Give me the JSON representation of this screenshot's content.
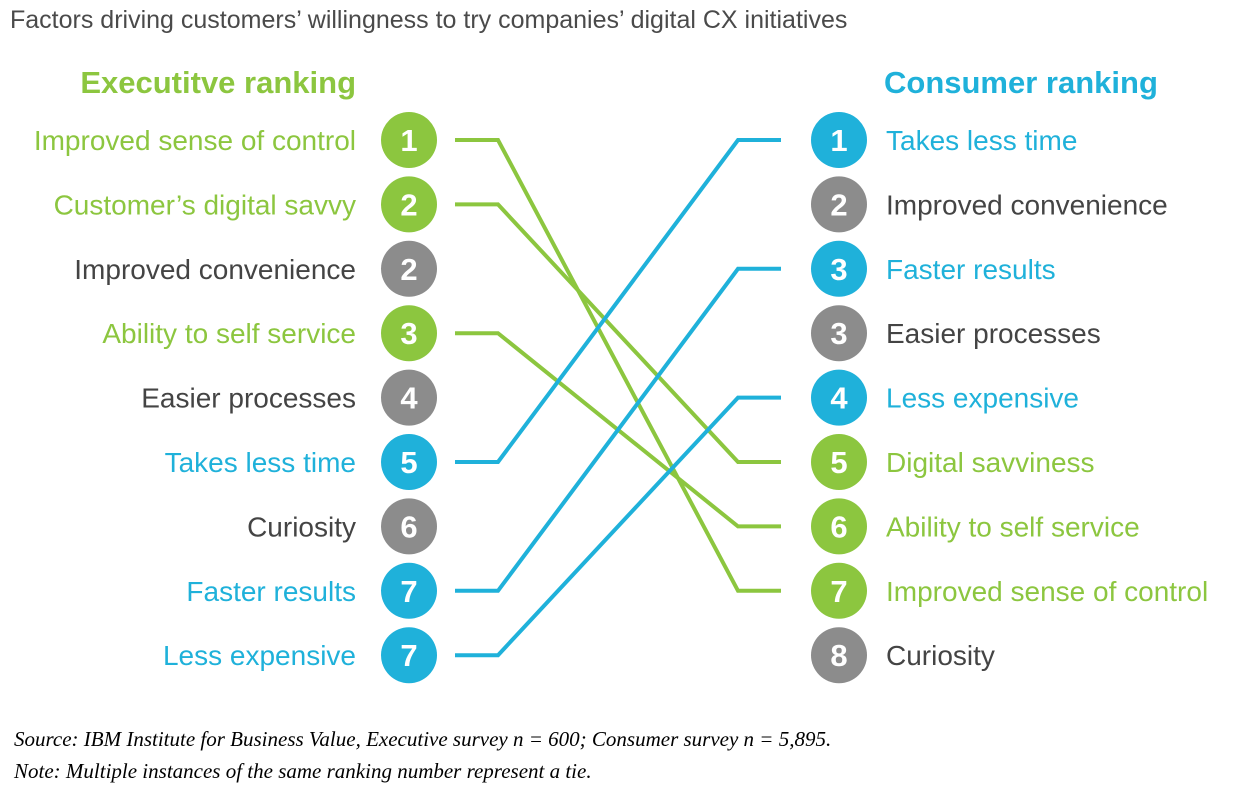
{
  "title": "Factors driving customers’ willingness to try companies’ digital CX initiatives",
  "colors": {
    "green": "#8cc63f",
    "blue": "#1fb1da",
    "gray": "#8c8c8c",
    "green_line": "#8cc63f",
    "blue_line": "#1fb1da",
    "dark_text": "#444444"
  },
  "chart_data": {
    "type": "slope-ranking",
    "left": {
      "heading": "Executitve ranking",
      "items": [
        {
          "label": "Improved sense of control",
          "rank": "1",
          "color": "green"
        },
        {
          "label": "Customer’s digital savvy",
          "rank": "2",
          "color": "green"
        },
        {
          "label": "Improved convenience",
          "rank": "2",
          "color": "gray"
        },
        {
          "label": "Ability to self service",
          "rank": "3",
          "color": "green"
        },
        {
          "label": "Easier processes",
          "rank": "4",
          "color": "gray"
        },
        {
          "label": "Takes less time",
          "rank": "5",
          "color": "blue"
        },
        {
          "label": "Curiosity",
          "rank": "6",
          "color": "gray"
        },
        {
          "label": "Faster results",
          "rank": "7",
          "color": "blue"
        },
        {
          "label": "Less expensive",
          "rank": "7",
          "color": "blue"
        }
      ]
    },
    "right": {
      "heading": "Consumer ranking",
      "items": [
        {
          "label": "Takes less time",
          "rank": "1",
          "color": "blue"
        },
        {
          "label": "Improved convenience",
          "rank": "2",
          "color": "gray"
        },
        {
          "label": "Faster results",
          "rank": "3",
          "color": "blue"
        },
        {
          "label": "Easier processes",
          "rank": "3",
          "color": "gray"
        },
        {
          "label": "Less expensive",
          "rank": "4",
          "color": "blue"
        },
        {
          "label": "Digital savviness",
          "rank": "5",
          "color": "green"
        },
        {
          "label": "Ability to self service",
          "rank": "6",
          "color": "green"
        },
        {
          "label": "Improved sense of control",
          "rank": "7",
          "color": "green"
        },
        {
          "label": "Curiosity",
          "rank": "8",
          "color": "gray"
        }
      ]
    },
    "connections": [
      {
        "from": 0,
        "to": 7,
        "color": "green"
      },
      {
        "from": 1,
        "to": 5,
        "color": "green"
      },
      {
        "from": 3,
        "to": 6,
        "color": "green"
      },
      {
        "from": 5,
        "to": 0,
        "color": "blue"
      },
      {
        "from": 7,
        "to": 2,
        "color": "blue"
      },
      {
        "from": 8,
        "to": 4,
        "color": "blue"
      }
    ]
  },
  "footnotes": {
    "source": "Source: IBM Institute for Business Value, Executive survey n = 600; Consumer survey n = 5,895.",
    "note": "Note: Multiple instances of the same ranking number represent a tie."
  }
}
